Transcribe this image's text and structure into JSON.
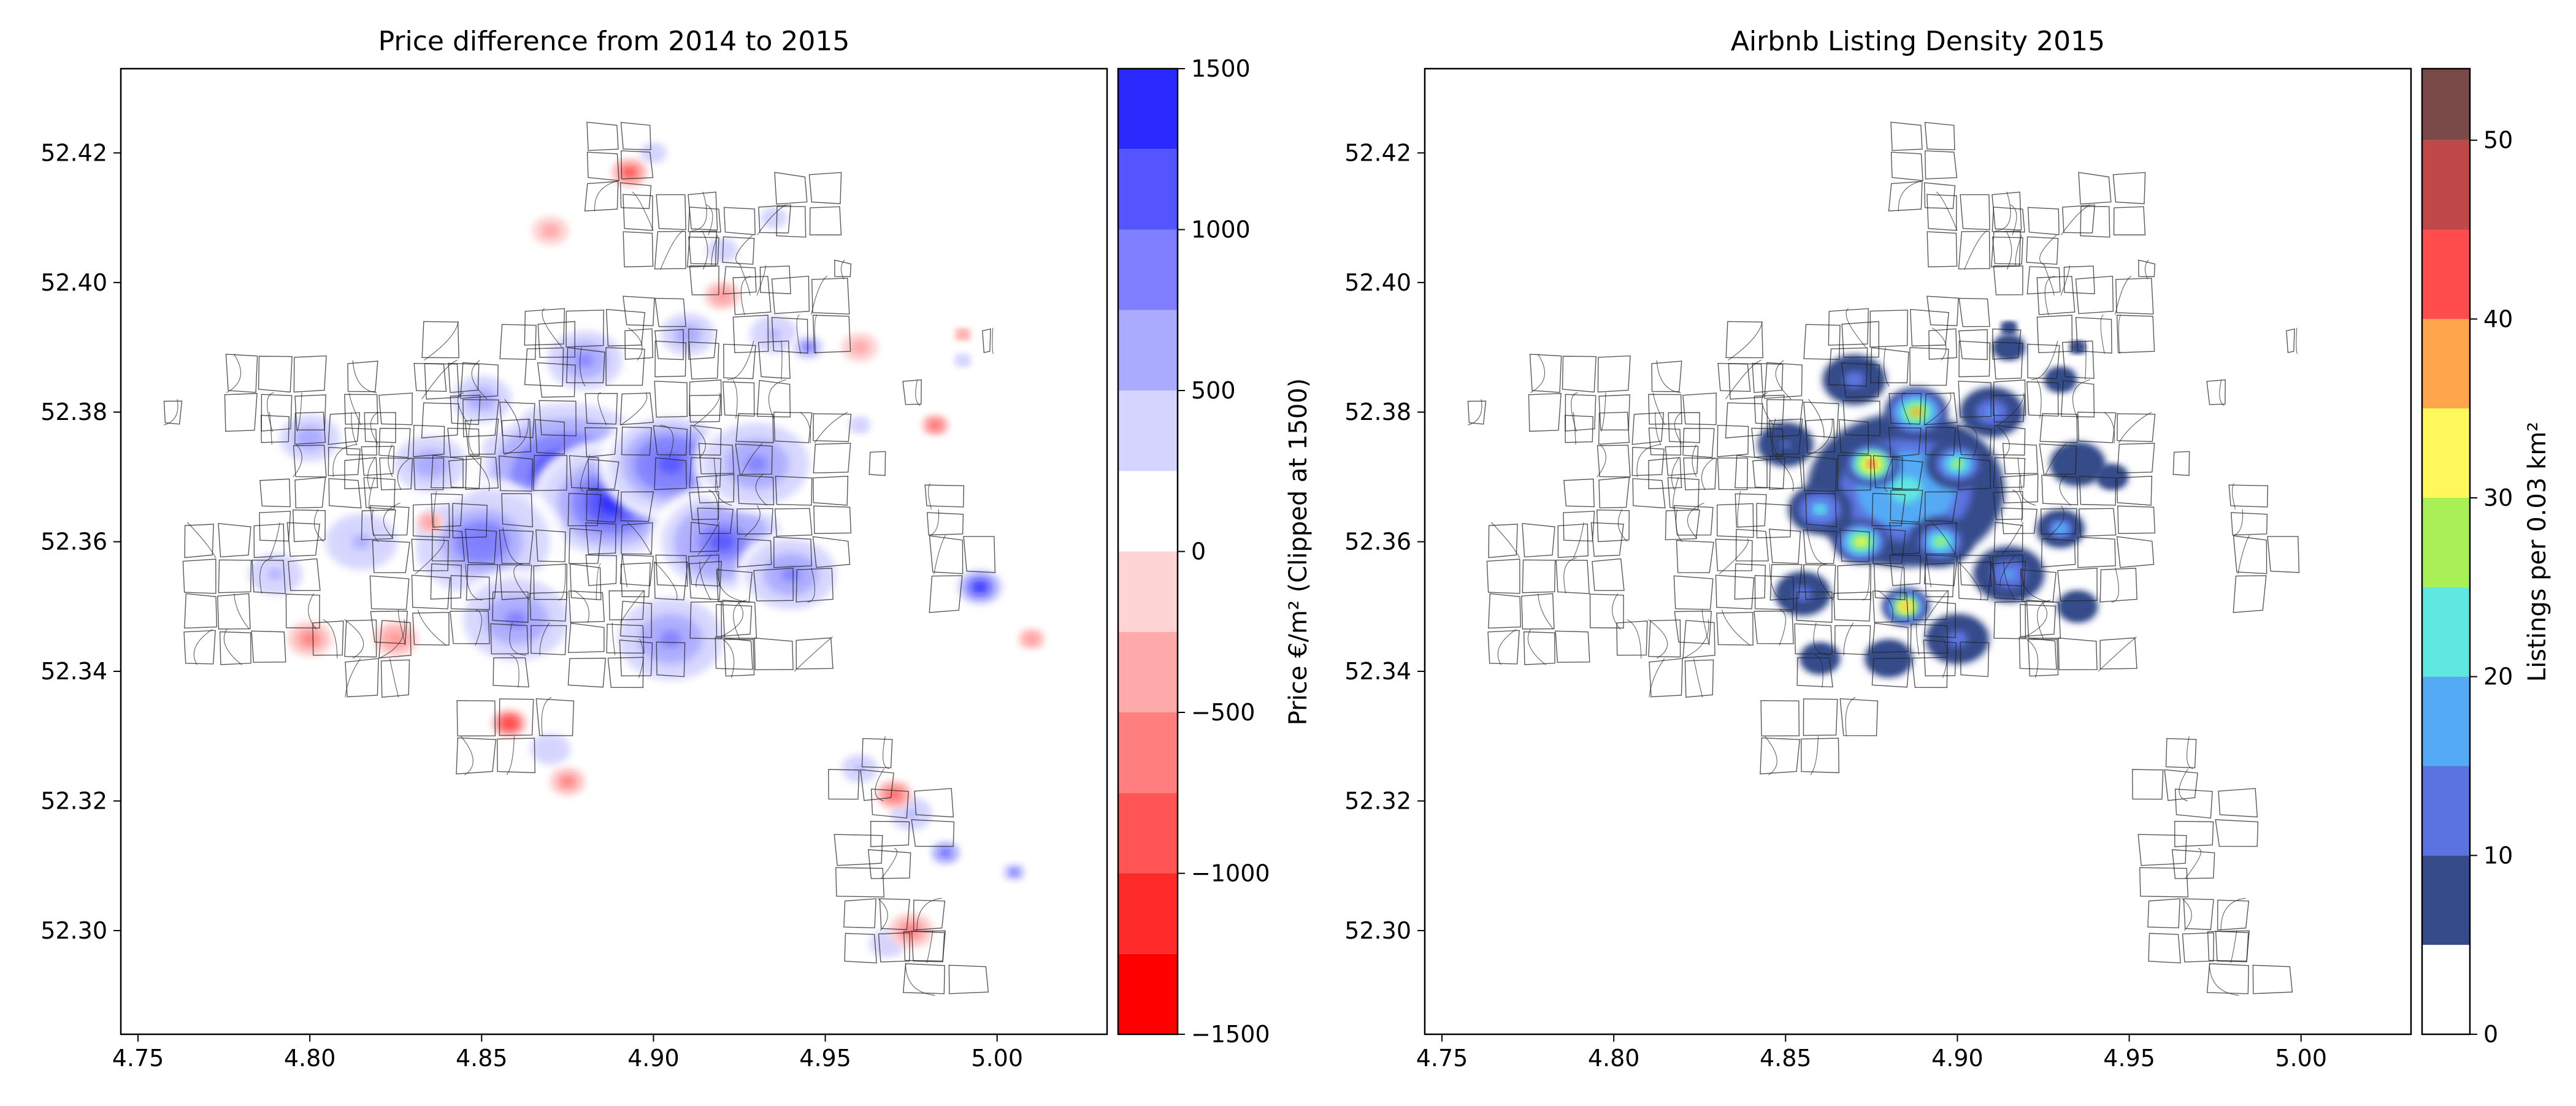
{
  "chart_data": [
    {
      "type": "heatmap",
      "title": "Price difference from 2014 to 2015",
      "x_ticks": [
        4.75,
        4.8,
        4.85,
        4.9,
        4.95,
        5.0
      ],
      "x_tick_labels": [
        "4.75",
        "4.80",
        "4.85",
        "4.90",
        "4.95",
        "5.00"
      ],
      "y_ticks": [
        52.3,
        52.32,
        52.34,
        52.36,
        52.38,
        52.4,
        52.42
      ],
      "y_tick_labels": [
        "52.30",
        "52.32",
        "52.34",
        "52.36",
        "52.38",
        "52.40",
        "52.42"
      ],
      "xlim": [
        4.745,
        5.032
      ],
      "ylim": [
        52.284,
        52.433
      ],
      "colorbar": {
        "label": "Price €/m² (Clipped at 1500)",
        "range": [
          -1500,
          1500
        ],
        "ticks": [
          -1500,
          -1000,
          -500,
          0,
          500,
          1000,
          1500
        ],
        "tick_labels": [
          "−1500",
          "−1000",
          "−500",
          "0",
          "500",
          "1000",
          "1500"
        ],
        "levels": [
          -1500,
          -1250,
          -1000,
          -750,
          -500,
          -250,
          0,
          250,
          500,
          750,
          1000,
          1250,
          1500
        ],
        "colors": [
          "#ff0000",
          "#ff2a2a",
          "#ff5555",
          "#ff7f7f",
          "#ffaaaa",
          "#ffd4d4",
          "#ffffff",
          "#d4d4ff",
          "#aaaaff",
          "#7f7fff",
          "#5555ff",
          "#2a2aff",
          "#0000ff"
        ]
      },
      "clusters": [
        {
          "x": 4.875,
          "y": 52.37,
          "value": 1250,
          "r": 0.025
        },
        {
          "x": 4.888,
          "y": 52.366,
          "value": 1400,
          "r": 0.018
        },
        {
          "x": 4.905,
          "y": 52.372,
          "value": 1200,
          "r": 0.016
        },
        {
          "x": 4.85,
          "y": 52.36,
          "value": 1000,
          "r": 0.018
        },
        {
          "x": 4.92,
          "y": 52.36,
          "value": 1050,
          "r": 0.016
        },
        {
          "x": 4.93,
          "y": 52.372,
          "value": 900,
          "r": 0.014
        },
        {
          "x": 4.94,
          "y": 52.355,
          "value": 900,
          "r": 0.012
        },
        {
          "x": 4.86,
          "y": 52.348,
          "value": 900,
          "r": 0.014
        },
        {
          "x": 4.905,
          "y": 52.345,
          "value": 850,
          "r": 0.014
        },
        {
          "x": 4.835,
          "y": 52.372,
          "value": 700,
          "r": 0.012
        },
        {
          "x": 4.815,
          "y": 52.36,
          "value": 600,
          "r": 0.012
        },
        {
          "x": 4.8,
          "y": 52.376,
          "value": 650,
          "r": 0.01
        },
        {
          "x": 4.79,
          "y": 52.355,
          "value": 550,
          "r": 0.009
        },
        {
          "x": 4.85,
          "y": 52.382,
          "value": 650,
          "r": 0.01
        },
        {
          "x": 4.88,
          "y": 52.388,
          "value": 800,
          "r": 0.01
        },
        {
          "x": 4.91,
          "y": 52.392,
          "value": 650,
          "r": 0.009
        },
        {
          "x": 4.935,
          "y": 52.392,
          "value": 550,
          "r": 0.008
        },
        {
          "x": 4.945,
          "y": 52.39,
          "value": 1000,
          "r": 0.004
        },
        {
          "x": 4.92,
          "y": 52.405,
          "value": 500,
          "r": 0.007
        },
        {
          "x": 4.9,
          "y": 52.42,
          "value": 500,
          "r": 0.006
        },
        {
          "x": 4.935,
          "y": 52.41,
          "value": 450,
          "r": 0.006
        },
        {
          "x": 4.995,
          "y": 52.353,
          "value": 1350,
          "r": 0.006
        },
        {
          "x": 4.87,
          "y": 52.328,
          "value": 450,
          "r": 0.009
        },
        {
          "x": 4.96,
          "y": 52.325,
          "value": 550,
          "r": 0.006
        },
        {
          "x": 4.975,
          "y": 52.318,
          "value": 550,
          "r": 0.007
        },
        {
          "x": 4.985,
          "y": 52.312,
          "value": 1050,
          "r": 0.004
        },
        {
          "x": 4.968,
          "y": 52.298,
          "value": 450,
          "r": 0.008
        },
        {
          "x": 5.005,
          "y": 52.309,
          "value": 950,
          "r": 0.003
        },
        {
          "x": 4.96,
          "y": 52.378,
          "value": 450,
          "r": 0.005
        },
        {
          "x": 4.99,
          "y": 52.388,
          "value": 450,
          "r": 0.004
        },
        {
          "x": 4.893,
          "y": 52.417,
          "value": -900,
          "r": 0.004
        },
        {
          "x": 4.858,
          "y": 52.332,
          "value": -1150,
          "r": 0.004
        },
        {
          "x": 4.97,
          "y": 52.321,
          "value": -850,
          "r": 0.004
        },
        {
          "x": 4.8,
          "y": 52.345,
          "value": -650,
          "r": 0.005
        },
        {
          "x": 4.825,
          "y": 52.345,
          "value": -550,
          "r": 0.005
        },
        {
          "x": 4.975,
          "y": 52.3,
          "value": -650,
          "r": 0.005
        },
        {
          "x": 4.982,
          "y": 52.378,
          "value": -800,
          "r": 0.003
        },
        {
          "x": 4.92,
          "y": 52.398,
          "value": -500,
          "r": 0.004
        },
        {
          "x": 4.87,
          "y": 52.408,
          "value": -450,
          "r": 0.004
        },
        {
          "x": 4.99,
          "y": 52.392,
          "value": -500,
          "r": 0.002
        },
        {
          "x": 4.835,
          "y": 52.363,
          "value": -550,
          "r": 0.003
        },
        {
          "x": 4.875,
          "y": 52.323,
          "value": -700,
          "r": 0.004
        },
        {
          "x": 4.96,
          "y": 52.39,
          "value": -400,
          "r": 0.004
        },
        {
          "x": 5.01,
          "y": 52.345,
          "value": -500,
          "r": 0.003
        }
      ]
    },
    {
      "type": "heatmap",
      "title": "Airbnb Listing Density 2015",
      "x_ticks": [
        4.75,
        4.8,
        4.85,
        4.9,
        4.95,
        5.0
      ],
      "x_tick_labels": [
        "4.75",
        "4.80",
        "4.85",
        "4.90",
        "4.95",
        "5.00"
      ],
      "y_ticks": [
        52.3,
        52.32,
        52.34,
        52.36,
        52.38,
        52.4,
        52.42
      ],
      "y_tick_labels": [
        "52.30",
        "52.32",
        "52.34",
        "52.36",
        "52.38",
        "52.40",
        "52.42"
      ],
      "xlim": [
        4.745,
        5.032
      ],
      "ylim": [
        52.284,
        52.433
      ],
      "colorbar": {
        "label": "Listings per 0.03 km²",
        "range": [
          0,
          54
        ],
        "ticks": [
          0,
          10,
          20,
          30,
          40,
          50
        ],
        "tick_labels": [
          "0",
          "10",
          "20",
          "30",
          "40",
          "50"
        ],
        "levels": [
          0,
          5,
          10,
          15,
          20,
          25,
          30,
          35,
          40,
          45,
          50,
          54
        ],
        "colors": [
          "#ffffff",
          "#364b8a",
          "#5b73e0",
          "#55aaf5",
          "#5fe8e0",
          "#a8f055",
          "#fff85a",
          "#ffa64d",
          "#ff4d4d",
          "#c04848",
          "#7a4a48"
        ]
      },
      "clusters": [
        {
          "x": 4.885,
          "y": 52.368,
          "value": 24,
          "r": 0.025
        },
        {
          "x": 4.875,
          "y": 52.372,
          "value": 42,
          "r": 0.007
        },
        {
          "x": 4.888,
          "y": 52.38,
          "value": 36,
          "r": 0.008
        },
        {
          "x": 4.872,
          "y": 52.36,
          "value": 34,
          "r": 0.007
        },
        {
          "x": 4.895,
          "y": 52.36,
          "value": 30,
          "r": 0.008
        },
        {
          "x": 4.885,
          "y": 52.35,
          "value": 38,
          "r": 0.006
        },
        {
          "x": 4.9,
          "y": 52.372,
          "value": 26,
          "r": 0.008
        },
        {
          "x": 4.86,
          "y": 52.365,
          "value": 22,
          "r": 0.008
        },
        {
          "x": 4.91,
          "y": 52.38,
          "value": 18,
          "r": 0.008
        },
        {
          "x": 4.915,
          "y": 52.355,
          "value": 16,
          "r": 0.009
        },
        {
          "x": 4.93,
          "y": 52.362,
          "value": 20,
          "r": 0.006
        },
        {
          "x": 4.855,
          "y": 52.352,
          "value": 14,
          "r": 0.007
        },
        {
          "x": 4.87,
          "y": 52.385,
          "value": 14,
          "r": 0.008
        },
        {
          "x": 4.9,
          "y": 52.345,
          "value": 14,
          "r": 0.008
        },
        {
          "x": 4.935,
          "y": 52.372,
          "value": 10,
          "r": 0.007
        },
        {
          "x": 4.85,
          "y": 52.375,
          "value": 11,
          "r": 0.007
        },
        {
          "x": 4.915,
          "y": 52.39,
          "value": 9,
          "r": 0.004
        },
        {
          "x": 4.93,
          "y": 52.385,
          "value": 8,
          "r": 0.004
        },
        {
          "x": 4.945,
          "y": 52.37,
          "value": 8,
          "r": 0.004
        },
        {
          "x": 4.88,
          "y": 52.342,
          "value": 9,
          "r": 0.006
        },
        {
          "x": 4.86,
          "y": 52.342,
          "value": 8,
          "r": 0.005
        },
        {
          "x": 4.935,
          "y": 52.35,
          "value": 8,
          "r": 0.005
        },
        {
          "x": 4.915,
          "y": 52.393,
          "value": 9,
          "r": 0.002
        },
        {
          "x": 4.935,
          "y": 52.39,
          "value": 8,
          "r": 0.002
        }
      ],
      "unit": "km"
    }
  ]
}
